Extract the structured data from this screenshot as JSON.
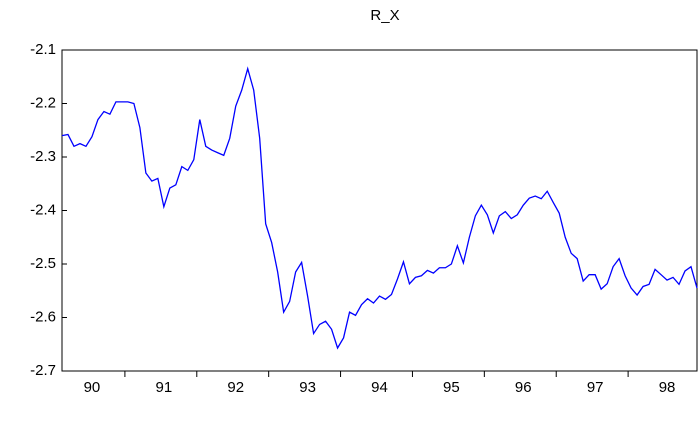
{
  "chart_data": {
    "type": "line",
    "title": "R_X",
    "categories": [
      null,
      null,
      null,
      null,
      null,
      "90",
      null,
      null,
      null,
      null,
      null,
      null,
      null,
      null,
      null,
      null,
      null,
      "91",
      null,
      null,
      null,
      null,
      null,
      null,
      null,
      null,
      null,
      null,
      null,
      "92",
      null,
      null,
      null,
      null,
      null,
      null,
      null,
      null,
      null,
      null,
      null,
      "93",
      null,
      null,
      null,
      null,
      null,
      null,
      null,
      null,
      null,
      null,
      null,
      "94",
      null,
      null,
      null,
      null,
      null,
      null,
      null,
      null,
      null,
      null,
      null,
      "95",
      null,
      null,
      null,
      null,
      null,
      null,
      null,
      null,
      null,
      null,
      null,
      "96",
      null,
      null,
      null,
      null,
      null,
      null,
      null,
      null,
      null,
      null,
      null,
      "97",
      null,
      null,
      null,
      null,
      null,
      null,
      null,
      null,
      null,
      null,
      null,
      "98",
      null,
      null,
      null,
      null,
      null
    ],
    "series": [
      {
        "name": "R_X",
        "color": "#0000ff",
        "values": [
          -2.26,
          -2.258,
          -2.28,
          -2.275,
          -2.28,
          -2.262,
          -2.23,
          -2.215,
          -2.22,
          -2.197,
          -2.197,
          -2.197,
          -2.2,
          -2.245,
          -2.33,
          -2.345,
          -2.34,
          -2.393,
          -2.358,
          -2.352,
          -2.318,
          -2.325,
          -2.305,
          -2.23,
          -2.28,
          -2.287,
          -2.292,
          -2.297,
          -2.265,
          -2.205,
          -2.175,
          -2.135,
          -2.175,
          -2.265,
          -2.425,
          -2.46,
          -2.515,
          -2.59,
          -2.57,
          -2.515,
          -2.497,
          -2.56,
          -2.63,
          -2.613,
          -2.607,
          -2.622,
          -2.657,
          -2.638,
          -2.59,
          -2.596,
          -2.576,
          -2.565,
          -2.573,
          -2.56,
          -2.566,
          -2.557,
          -2.528,
          -2.496,
          -2.537,
          -2.525,
          -2.522,
          -2.512,
          -2.517,
          -2.507,
          -2.507,
          -2.5,
          -2.466,
          -2.498,
          -2.45,
          -2.41,
          -2.39,
          -2.408,
          -2.442,
          -2.41,
          -2.402,
          -2.415,
          -2.408,
          -2.39,
          -2.377,
          -2.373,
          -2.378,
          -2.364,
          -2.385,
          -2.405,
          -2.45,
          -2.48,
          -2.49,
          -2.532,
          -2.52,
          -2.52,
          -2.547,
          -2.537,
          -2.505,
          -2.49,
          -2.522,
          -2.545,
          -2.558,
          -2.542,
          -2.538,
          -2.51,
          -2.52,
          -2.53,
          -2.525,
          -2.538,
          -2.513,
          -2.505,
          -2.545
        ]
      }
    ],
    "ylim": [
      -2.7,
      -2.1
    ],
    "yticks": [
      -2.7,
      -2.6,
      -2.5,
      -2.4,
      -2.3,
      -2.2,
      -2.1
    ]
  }
}
